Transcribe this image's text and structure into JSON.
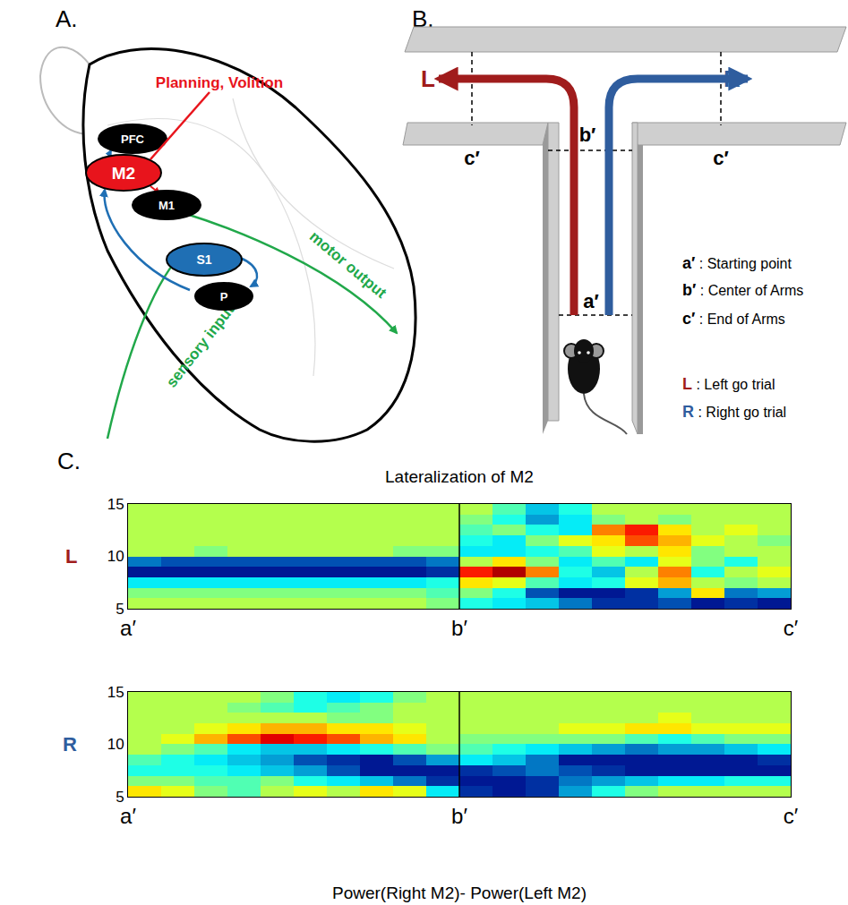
{
  "panel_a": {
    "label": "A.",
    "callout": "Planning, Volition",
    "regions": [
      {
        "label": "PFC",
        "color": "#000000"
      },
      {
        "label": "M2",
        "color": "#e8141c"
      },
      {
        "label": "M1",
        "color": "#000000"
      },
      {
        "label": "S1",
        "color": "#1f6fb4"
      },
      {
        "label": "P",
        "color": "#000000"
      }
    ],
    "pathways": [
      "motor output",
      "sensory input"
    ]
  },
  "panel_b": {
    "label": "B.",
    "left_arm": {
      "label": "L",
      "color": "#a01c1c"
    },
    "right_arm": {
      "label": "R",
      "color": "#2f5d9e"
    },
    "marks": {
      "start": "a′",
      "center": "b′",
      "end": "c′"
    },
    "key": [
      {
        "symbol": "a′",
        "text": " : Starting point",
        "color": "#000000"
      },
      {
        "symbol": "b′",
        "text": " : Center of Arms",
        "color": "#000000"
      },
      {
        "symbol": "c′",
        "text": " : End of Arms",
        "color": "#000000"
      },
      {
        "symbol": "L",
        "text": " : Left go trial",
        "color": "#a01c1c"
      },
      {
        "symbol": "R",
        "text": " : Right go trial",
        "color": "#2f5d9e"
      }
    ]
  },
  "panel_c": {
    "label": "C.",
    "title": "Lateralization of M2",
    "caption": "Power(Right M2)- Power(Left M2)"
  },
  "chart_data": [
    {
      "type": "heatmap",
      "name": "L",
      "color": "#a01c1c",
      "x": [
        0.05,
        0.15,
        0.25,
        0.35,
        0.45,
        0.55,
        0.65,
        0.75,
        0.85,
        0.95,
        1.05,
        1.15,
        1.25,
        1.35,
        1.45,
        1.55,
        1.65,
        1.75,
        1.85,
        1.95
      ],
      "y": [
        5.5,
        6.5,
        7.5,
        8.5,
        9.5,
        10.5,
        11.5,
        12.5,
        13.5,
        14.5
      ],
      "z": [
        [
          0.1,
          0.1,
          0.1,
          0.1,
          0.1,
          0.1,
          0.1,
          0.1,
          0.1,
          0.0,
          -0.2,
          -0.3,
          -0.4,
          -0.6,
          -0.8,
          -0.8,
          -0.7,
          -0.9,
          -0.8,
          -0.9
        ],
        [
          0.0,
          0.0,
          0.0,
          0.0,
          0.0,
          0.0,
          0.0,
          0.0,
          0.0,
          -0.1,
          0.0,
          -0.2,
          -0.7,
          -0.9,
          -0.9,
          -0.8,
          -0.5,
          0.3,
          -0.6,
          -0.5
        ],
        [
          -0.3,
          -0.3,
          -0.3,
          -0.3,
          -0.3,
          -0.3,
          -0.3,
          -0.3,
          -0.3,
          -0.2,
          0.3,
          0.2,
          -0.1,
          -0.3,
          -0.2,
          0.2,
          0.4,
          0.1,
          0.0,
          0.1
        ],
        [
          -0.9,
          -0.9,
          -0.9,
          -0.9,
          -0.9,
          -0.9,
          -0.9,
          -0.9,
          -0.9,
          -0.8,
          0.7,
          0.9,
          0.5,
          -0.2,
          -0.4,
          0.1,
          0.5,
          -0.2,
          0.1,
          0.2
        ],
        [
          -0.6,
          -0.7,
          -0.7,
          -0.7,
          -0.7,
          -0.7,
          -0.7,
          -0.7,
          -0.7,
          -0.6,
          0.1,
          0.3,
          0.0,
          -0.3,
          -0.1,
          -0.3,
          0.2,
          0.0,
          -0.2,
          0.1
        ],
        [
          0.1,
          0.1,
          0.0,
          0.1,
          0.1,
          0.1,
          0.1,
          0.1,
          0.0,
          0.0,
          -0.3,
          -0.3,
          -0.2,
          -0.1,
          0.2,
          0.1,
          0.3,
          0.0,
          0.1,
          0.1
        ],
        [
          0.1,
          0.1,
          0.1,
          0.1,
          0.1,
          0.1,
          0.1,
          0.1,
          0.1,
          0.1,
          -0.2,
          -0.3,
          0.0,
          0.2,
          0.3,
          0.6,
          0.4,
          0.2,
          0.1,
          0.0
        ],
        [
          0.1,
          0.1,
          0.1,
          0.1,
          0.1,
          0.1,
          0.1,
          0.1,
          0.1,
          0.1,
          -0.1,
          0.0,
          -0.2,
          -0.3,
          0.5,
          0.7,
          0.3,
          0.1,
          0.2,
          0.1
        ],
        [
          0.1,
          0.1,
          0.1,
          0.1,
          0.1,
          0.1,
          0.1,
          0.1,
          0.1,
          0.1,
          0.0,
          -0.2,
          -0.5,
          -0.3,
          0.0,
          0.1,
          0.0,
          0.1,
          0.1,
          0.1
        ],
        [
          0.1,
          0.1,
          0.1,
          0.1,
          0.1,
          0.1,
          0.1,
          0.1,
          0.1,
          0.1,
          0.1,
          -0.1,
          -0.4,
          -0.2,
          0.1,
          0.1,
          0.1,
          0.1,
          0.1,
          0.1
        ]
      ],
      "zlim": [
        -1,
        1
      ],
      "xlim": [
        0,
        2
      ],
      "ylim": [
        5,
        15
      ],
      "xticks": [
        {
          "value": 0,
          "label": "a′"
        },
        {
          "value": 1,
          "label": "b′"
        },
        {
          "value": 2,
          "label": "c′"
        }
      ],
      "yticks": [
        5,
        10,
        15
      ],
      "divider": 1
    },
    {
      "type": "heatmap",
      "name": "R",
      "color": "#2f5d9e",
      "x": [
        0.05,
        0.15,
        0.25,
        0.35,
        0.45,
        0.55,
        0.65,
        0.75,
        0.85,
        0.95,
        1.05,
        1.15,
        1.25,
        1.35,
        1.45,
        1.55,
        1.65,
        1.75,
        1.85,
        1.95
      ],
      "y": [
        5.5,
        6.5,
        7.5,
        8.5,
        9.5,
        10.5,
        11.5,
        12.5,
        13.5,
        14.5
      ],
      "z": [
        [
          0.3,
          0.2,
          0.0,
          -0.1,
          0.1,
          0.2,
          0.1,
          0.3,
          0.2,
          -0.3,
          -0.8,
          -0.9,
          -0.8,
          -0.5,
          -0.2,
          0.0,
          0.1,
          0.1,
          0.1,
          0.1
        ],
        [
          0.0,
          0.0,
          -0.1,
          -0.1,
          0.0,
          -0.2,
          -0.3,
          -0.4,
          -0.6,
          -0.8,
          -0.9,
          -0.9,
          -0.8,
          -0.6,
          -0.5,
          -0.4,
          -0.3,
          -0.3,
          -0.2,
          -0.2
        ],
        [
          -0.2,
          -0.2,
          -0.2,
          -0.3,
          -0.4,
          -0.5,
          -0.7,
          -0.9,
          -0.9,
          -0.9,
          -0.8,
          -0.7,
          -0.6,
          -0.7,
          -0.8,
          -0.9,
          -0.9,
          -0.9,
          -0.9,
          -0.9
        ],
        [
          -0.1,
          -0.2,
          -0.3,
          -0.4,
          -0.5,
          -0.7,
          -0.8,
          -0.9,
          -0.7,
          -0.5,
          -0.3,
          -0.4,
          -0.6,
          -0.9,
          -0.9,
          -0.9,
          -0.9,
          -0.9,
          -0.9,
          -0.8
        ],
        [
          0.1,
          0.0,
          -0.1,
          -0.3,
          -0.4,
          -0.4,
          -0.3,
          -0.2,
          -0.1,
          0.0,
          -0.1,
          -0.2,
          -0.3,
          -0.4,
          -0.5,
          -0.6,
          -0.5,
          -0.5,
          -0.4,
          -0.3
        ],
        [
          0.1,
          0.2,
          0.4,
          0.6,
          0.8,
          0.7,
          0.6,
          0.4,
          0.3,
          0.1,
          0.0,
          0.0,
          0.0,
          0.0,
          0.0,
          -0.1,
          -0.2,
          -0.1,
          0.0,
          0.0
        ],
        [
          0.1,
          0.1,
          0.2,
          0.3,
          0.4,
          0.4,
          0.3,
          0.3,
          0.2,
          0.1,
          0.1,
          0.1,
          0.1,
          0.2,
          0.2,
          0.3,
          0.3,
          0.2,
          0.2,
          0.2
        ],
        [
          0.1,
          0.1,
          0.1,
          0.1,
          0.1,
          0.1,
          0.0,
          0.0,
          0.1,
          0.1,
          0.1,
          0.1,
          0.1,
          0.1,
          0.1,
          0.1,
          0.2,
          0.1,
          0.1,
          0.1
        ],
        [
          0.1,
          0.1,
          0.1,
          0.0,
          -0.1,
          -0.2,
          -0.1,
          0.0,
          0.1,
          0.1,
          0.1,
          0.1,
          0.1,
          0.1,
          0.1,
          0.1,
          0.1,
          0.1,
          0.1,
          0.1
        ],
        [
          0.1,
          0.1,
          0.1,
          0.1,
          0.0,
          -0.2,
          -0.3,
          -0.2,
          0.0,
          0.1,
          0.1,
          0.1,
          0.1,
          0.1,
          0.1,
          0.1,
          0.1,
          0.1,
          0.1,
          0.1
        ]
      ],
      "zlim": [
        -1,
        1
      ],
      "xlim": [
        0,
        2
      ],
      "ylim": [
        5,
        15
      ],
      "xticks": [
        {
          "value": 0,
          "label": "a′"
        },
        {
          "value": 1,
          "label": "b′"
        },
        {
          "value": 2,
          "label": "c′"
        }
      ],
      "yticks": [
        5,
        10,
        15
      ],
      "divider": 1
    }
  ]
}
